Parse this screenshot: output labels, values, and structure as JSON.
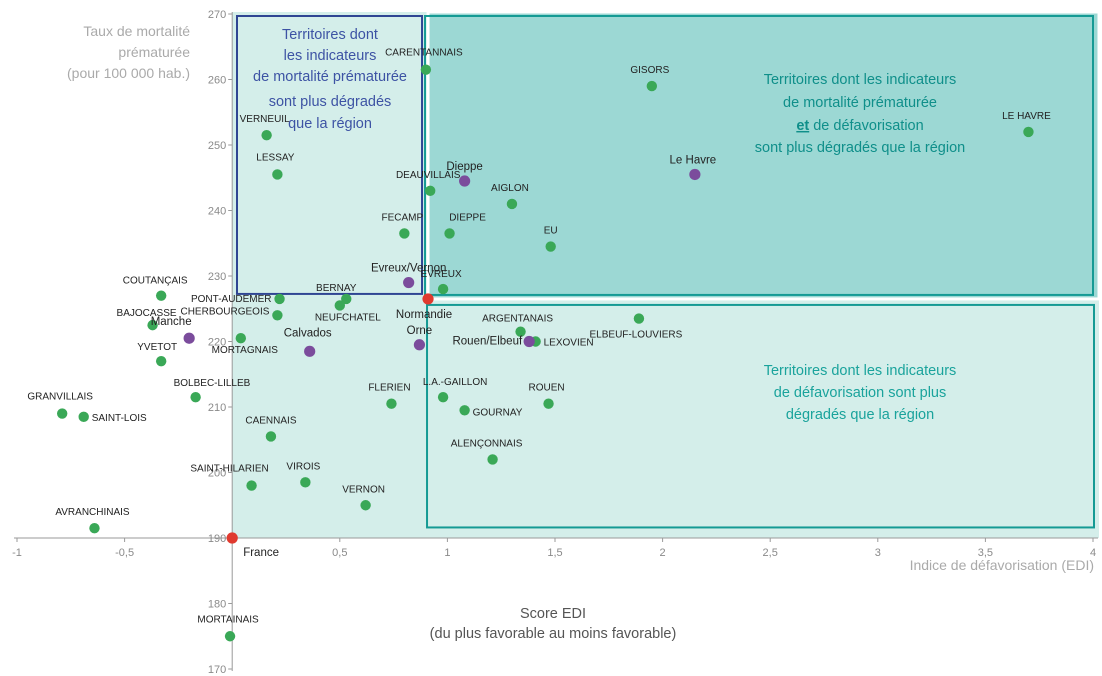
{
  "chart_data": {
    "type": "scatter",
    "xlabel": "Indice de défavorisation (EDI)",
    "ylabel_lines": [
      "Taux de mortalité",
      "prématurée",
      "(pour 100 000 hab.)"
    ],
    "subtitle_lines": [
      "Score EDI",
      "(du plus favorable au moins favorable)"
    ],
    "xlim": [
      -1,
      4
    ],
    "ylim": [
      170,
      270
    ],
    "x_ticks": [
      -1,
      -0.5,
      0,
      0.5,
      1,
      1.5,
      2,
      2.5,
      3,
      3.5,
      4
    ],
    "x_tick_labels": [
      "-1",
      "-0,5",
      "",
      "0,5",
      "1",
      "1,5",
      "2",
      "2,5",
      "3",
      "3,5",
      "4"
    ],
    "y_ticks": [
      170,
      180,
      190,
      200,
      210,
      220,
      230,
      240,
      250,
      260,
      270
    ],
    "y_tick_labels": [
      "170",
      "180",
      "190",
      "200",
      "210",
      "220",
      "230",
      "240",
      "250",
      "260",
      "270"
    ],
    "reference": {
      "x": 0.91,
      "y": 226.5
    },
    "regions": [
      {
        "id": "mortalite",
        "lines": [
          "Territoires dont",
          "les indicateurs",
          "de mortalité prématurée",
          "sont plus dégradés",
          "que la région"
        ]
      },
      {
        "id": "les-deux",
        "lines": [
          "Territoires dont les indicateurs",
          "de mortalité prématurée",
          "et de défavorisation",
          "sont plus dégradés que la région"
        ],
        "underlined_word": "et"
      },
      {
        "id": "defavorisation",
        "lines": [
          "Territoires dont les indicateurs",
          "de défavorisation sont plus",
          "dégradés que la région"
        ]
      }
    ],
    "series": [
      {
        "kind": "territoire",
        "color": "#3aa857",
        "points": [
          {
            "label": "CARENTANNAIS",
            "x": 0.9,
            "y": 261.5
          },
          {
            "label": "GISORS",
            "x": 1.95,
            "y": 259
          },
          {
            "label": "LE HAVRE",
            "x": 3.7,
            "y": 252
          },
          {
            "label": "VERNEUIL",
            "x": 0.16,
            "y": 251.5
          },
          {
            "label": "LESSAY",
            "x": 0.21,
            "y": 245.5
          },
          {
            "label": "DEAUVILLAIS",
            "x": 0.92,
            "y": 243
          },
          {
            "label": "AIGLON",
            "x": 1.3,
            "y": 241
          },
          {
            "label": "FECAMP",
            "x": 0.8,
            "y": 236.5
          },
          {
            "label": "DIEPPE",
            "x": 1.01,
            "y": 236.5
          },
          {
            "label": "EU",
            "x": 1.48,
            "y": 234.5
          },
          {
            "label": "EVREUX",
            "x": 0.98,
            "y": 228
          },
          {
            "label": "COUTANÇAIS",
            "x": -0.33,
            "y": 227
          },
          {
            "label": "PONT-AUDEMER",
            "x": 0.22,
            "y": 226.5
          },
          {
            "label": "BERNAY",
            "x": 0.53,
            "y": 226.5
          },
          {
            "label": "NEUFCHATEL",
            "x": 0.5,
            "y": 225.5
          },
          {
            "label": "CHERBOURGEOIS",
            "x": 0.21,
            "y": 224
          },
          {
            "label": "BAJOCASSE",
            "x": -0.37,
            "y": 222.5
          },
          {
            "label": "MORTAGNAIS",
            "x": 0.04,
            "y": 220.5
          },
          {
            "label": "ARGENTANAIS",
            "x": 1.34,
            "y": 221.5
          },
          {
            "label": "ELBEUF-LOUVIERS",
            "x": 1.89,
            "y": 223.5
          },
          {
            "label": "LEXOVIEN",
            "x": 1.41,
            "y": 220
          },
          {
            "label": "YVETOT",
            "x": -0.33,
            "y": 217
          },
          {
            "label": "BOLBEC-LILLEB",
            "x": -0.17,
            "y": 211.5
          },
          {
            "label": "GRANVILLAIS",
            "x": -0.79,
            "y": 209
          },
          {
            "label": "SAINT-LOIS",
            "x": -0.69,
            "y": 208.5
          },
          {
            "label": "FLERIEN",
            "x": 0.74,
            "y": 210.5
          },
          {
            "label": "L.A.-GAILLON",
            "x": 0.98,
            "y": 211.5
          },
          {
            "label": "GOURNAY",
            "x": 1.08,
            "y": 209.5
          },
          {
            "label": "ROUEN",
            "x": 1.47,
            "y": 210.5
          },
          {
            "label": "CAENNAIS",
            "x": 0.18,
            "y": 205.5
          },
          {
            "label": "ALENÇONNAIS",
            "x": 1.21,
            "y": 202
          },
          {
            "label": "SAINT-HILARIEN",
            "x": 0.09,
            "y": 198
          },
          {
            "label": "VIROIS",
            "x": 0.34,
            "y": 198.5
          },
          {
            "label": "VERNON",
            "x": 0.62,
            "y": 195
          },
          {
            "label": "AVRANCHINAIS",
            "x": -0.64,
            "y": 191.5
          },
          {
            "label": "MORTAINAIS",
            "x": -0.01,
            "y": 175
          }
        ]
      },
      {
        "kind": "département",
        "color": "#7b4c9c",
        "points": [
          {
            "label": "Dieppe",
            "x": 1.08,
            "y": 244.5
          },
          {
            "label": "Le Havre",
            "x": 2.15,
            "y": 245.5
          },
          {
            "label": "Evreux/Vernon",
            "x": 0.82,
            "y": 229
          },
          {
            "label": "Manche",
            "x": -0.2,
            "y": 220.5
          },
          {
            "label": "Calvados",
            "x": 0.36,
            "y": 218.5
          },
          {
            "label": "Orne",
            "x": 0.87,
            "y": 219.5
          },
          {
            "label": "Rouen/Elbeuf",
            "x": 1.38,
            "y": 220
          }
        ]
      },
      {
        "kind": "référence",
        "color": "#e03a2f",
        "points": [
          {
            "label": "Normandie",
            "x": 0.91,
            "y": 226.5
          },
          {
            "label": "France",
            "x": 0,
            "y": 190
          }
        ]
      }
    ]
  }
}
